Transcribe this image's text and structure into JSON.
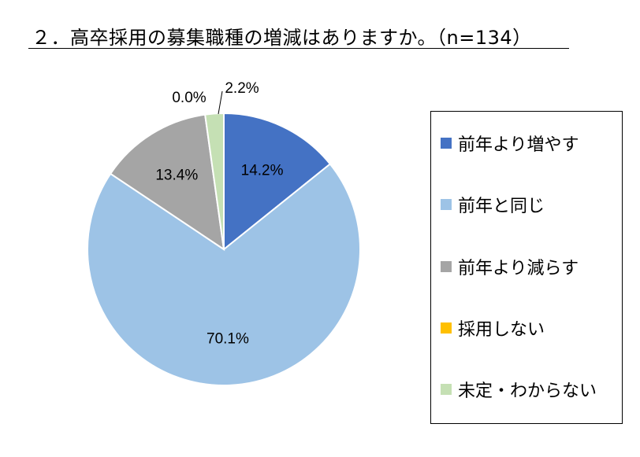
{
  "title": "２．高卒採用の募集職種の増減はありますか。（n=134）",
  "chart_data": {
    "type": "pie",
    "categories": [
      "前年より増やす",
      "前年と同じ",
      "前年より減らす",
      "採用しない",
      "未定・わからない"
    ],
    "values": [
      14.2,
      70.1,
      13.4,
      0.0,
      2.2
    ],
    "labels": [
      "14.2%",
      "70.1%",
      "13.4%",
      "0.0%",
      "2.2%"
    ],
    "colors": [
      "#4472C4",
      "#9DC3E6",
      "#A5A5A5",
      "#FFC000",
      "#C5E0B4"
    ],
    "legend_placement": "right"
  }
}
